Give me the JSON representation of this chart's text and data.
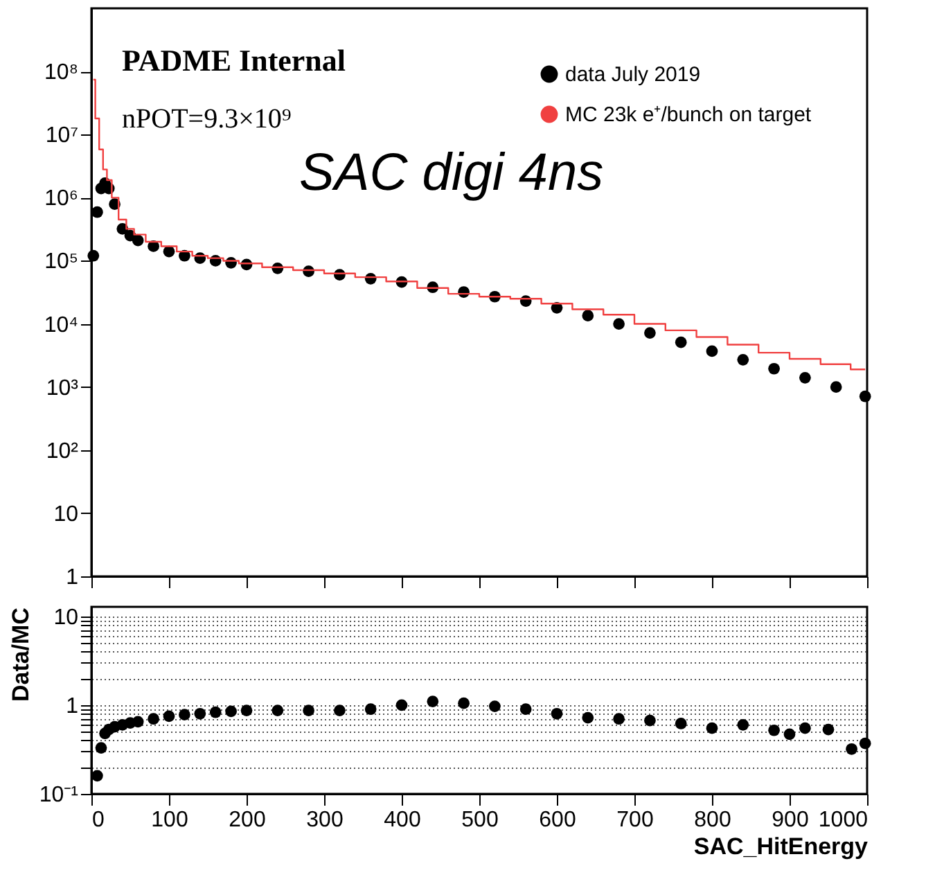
{
  "chart_data": [
    {
      "type": "scatter",
      "annotations": [
        "PADME Internal",
        "nPOT=9.3×10⁹",
        "SAC digi 4ns"
      ],
      "legend": "top right",
      "log": "y",
      "grid": false,
      "tick_labels": "y",
      "xlim": [
        0,
        1000
      ],
      "xticks": [
        0,
        100,
        200,
        300,
        400,
        500,
        600,
        700,
        800,
        900,
        1000
      ],
      "ylim": [
        1,
        1000000000
      ],
      "yticks": [
        1,
        10,
        {
          "value": 100,
          "label": "10²"
        },
        {
          "value": 1000,
          "label": "10³"
        },
        {
          "value": 10000,
          "label": "10⁴"
        },
        {
          "value": 100000,
          "label": "10⁵"
        },
        {
          "value": 1000000,
          "label": "10⁶"
        },
        {
          "value": 10000000,
          "label": "10⁷"
        },
        {
          "value": 100000000,
          "label": "10⁸"
        }
      ],
      "series": [
        {
          "name": "data July 2019",
          "marker": "circle",
          "color": "#000000",
          "x": [
            2.5,
            7.5,
            12.5,
            17.5,
            22.5,
            30,
            40,
            50,
            60,
            80,
            100,
            120,
            140,
            160,
            180,
            200,
            240,
            280,
            320,
            360,
            400,
            440,
            480,
            520,
            560,
            600,
            640,
            680,
            720,
            760,
            800,
            840,
            880,
            920,
            960,
            997.5
          ],
          "values": [
            120000,
            590000,
            1400000,
            1700000,
            1400000,
            790000,
            320000,
            250000,
            210000,
            170000,
            140000,
            120000,
            110000,
            100000,
            93000,
            87000,
            76000,
            68000,
            60000,
            52000,
            46000,
            38000,
            32000,
            27000,
            23000,
            18000,
            13500,
            10000,
            7200,
            5100,
            3700,
            2700,
            1950,
            1400,
            1000,
            710
          ]
        },
        {
          "name": "MC 23k e⁺/bunch on target",
          "type": "step",
          "line_style": "solid",
          "color": "#f04040",
          "x": [
            2.5,
            7.5,
            12.5,
            17.5,
            22.5,
            30,
            40,
            50,
            60,
            80,
            100,
            120,
            140,
            160,
            180,
            200,
            240,
            280,
            320,
            360,
            400,
            440,
            480,
            520,
            560,
            600,
            640,
            680,
            720,
            760,
            800,
            840,
            880,
            920,
            960,
            997.5
          ],
          "values": [
            74000000,
            18000000,
            5800000,
            2800000,
            1900000,
            1000000,
            450000,
            320000,
            260000,
            200000,
            170000,
            140000,
            120000,
            110000,
            100000,
            91000,
            79000,
            71000,
            63000,
            55000,
            47000,
            37000,
            30000,
            27000,
            25000,
            21000,
            17000,
            14000,
            10000,
            7900,
            6200,
            4700,
            3500,
            2800,
            2300,
            1900
          ]
        }
      ]
    },
    {
      "type": "scatter",
      "xlabel": "SAC_HitEnergy",
      "ylabel": "Data/MC",
      "log": "y",
      "grid": "y",
      "marker": "circle",
      "xlim": [
        0,
        1000
      ],
      "xticks": [
        0,
        100,
        200,
        300,
        400,
        500,
        600,
        700,
        800,
        900,
        1000
      ],
      "ylim": [
        0.1,
        12.8
      ],
      "yticks": [
        {
          "value": 0.1,
          "label": "10⁻¹"
        },
        {
          "value": 0.2,
          "label": null
        },
        {
          "value": 0.3,
          "label": null
        },
        {
          "value": 0.4,
          "label": null
        },
        {
          "value": 0.5,
          "label": null
        },
        {
          "value": 0.6,
          "label": null
        },
        {
          "value": 0.7,
          "label": null
        },
        {
          "value": 0.8,
          "label": null
        },
        {
          "value": 0.9,
          "label": null
        },
        1,
        {
          "value": 2,
          "label": null
        },
        {
          "value": 3,
          "label": null
        },
        {
          "value": 4,
          "label": null
        },
        {
          "value": 5,
          "label": null
        },
        {
          "value": 6,
          "label": null
        },
        {
          "value": 7,
          "label": null
        },
        {
          "value": 8,
          "label": null
        },
        {
          "value": 9,
          "label": null
        },
        10
      ],
      "series": [
        {
          "color": "#000000",
          "x": [
            7.5,
            12.5,
            17.5,
            22.5,
            30,
            40,
            50,
            60,
            80,
            100,
            120,
            140,
            160,
            180,
            200,
            240,
            280,
            320,
            360,
            400,
            440,
            480,
            520,
            560,
            600,
            640,
            680,
            720,
            760,
            800,
            840,
            880,
            900,
            920,
            950,
            980,
            997.5
          ],
          "values": [
            0.16,
            0.33,
            0.48,
            0.53,
            0.57,
            0.6,
            0.63,
            0.65,
            0.7,
            0.75,
            0.78,
            0.8,
            0.83,
            0.85,
            0.87,
            0.87,
            0.87,
            0.87,
            0.9,
            1.0,
            1.1,
            1.05,
            0.97,
            0.9,
            0.8,
            0.72,
            0.7,
            0.67,
            0.62,
            0.55,
            0.6,
            0.52,
            0.47,
            0.55,
            0.53,
            0.32,
            0.37
          ]
        }
      ]
    }
  ]
}
